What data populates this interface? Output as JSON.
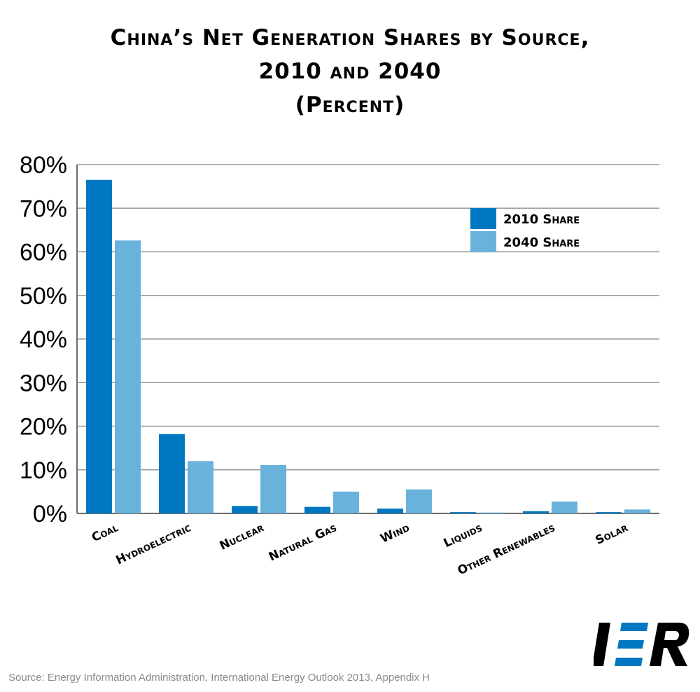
{
  "title_lines": [
    "China’s Net Generation Shares by Source,",
    "2010 and 2040",
    "(Percent)"
  ],
  "source": "Source: Energy Information Administration, International Energy Outlook 2013, Appendix H",
  "logo_text": "IER",
  "colors": {
    "series_2010": "#0078c1",
    "series_2040": "#69b2dc",
    "grid": "#9a9a9a",
    "axis": "#6e6e6e"
  },
  "chart_data": {
    "type": "bar",
    "title": "China’s Net Generation Shares by Source, 2010 and 2040 (Percent)",
    "categories": [
      "Coal",
      "Hydroelectric",
      "Nuclear",
      "Natural Gas",
      "Wind",
      "Liquids",
      "Other Renewables",
      "Solar"
    ],
    "series": [
      {
        "name": "2010 Share",
        "values": [
          76.5,
          18.2,
          1.7,
          1.5,
          1.1,
          0.3,
          0.5,
          0.3
        ]
      },
      {
        "name": "2040 Share",
        "values": [
          62.6,
          12.0,
          11.1,
          5.0,
          5.5,
          0.2,
          2.7,
          0.9
        ]
      }
    ],
    "yticks": [
      "0%",
      "10%",
      "20%",
      "30%",
      "40%",
      "50%",
      "60%",
      "70%",
      "80%"
    ],
    "ylim": [
      0,
      80
    ],
    "grid": true,
    "legend_position": "top-right"
  }
}
